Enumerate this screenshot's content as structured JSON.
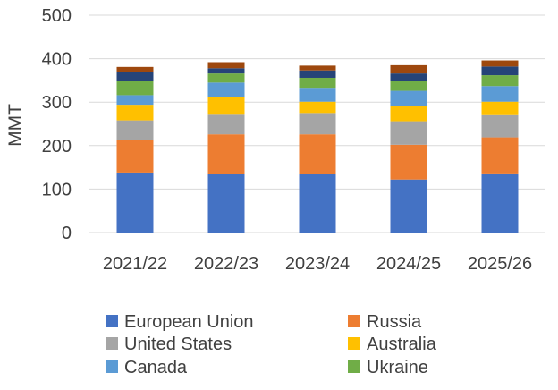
{
  "chart_data": {
    "type": "bar",
    "stacked": true,
    "ylabel": "MMT",
    "xlabel": "",
    "ylim": [
      0,
      500
    ],
    "yticks": [
      0,
      100,
      200,
      300,
      400,
      500
    ],
    "grid": "horizontal",
    "legend_position": "bottom",
    "categories": [
      "2021/22",
      "2022/23",
      "2023/24",
      "2024/25",
      "2025/26"
    ],
    "series": [
      {
        "name": "European Union",
        "color": "#4472C4",
        "values": [
          138,
          134,
          134,
          122,
          136
        ]
      },
      {
        "name": "Russia",
        "color": "#ED7D31",
        "values": [
          75,
          92,
          92,
          80,
          83
        ]
      },
      {
        "name": "United States",
        "color": "#A5A5A5",
        "values": [
          45,
          45,
          49,
          54,
          51
        ]
      },
      {
        "name": "Australia",
        "color": "#FFC000",
        "values": [
          36,
          40,
          26,
          35,
          31
        ]
      },
      {
        "name": "Canada",
        "color": "#5B9BD5",
        "values": [
          22,
          34,
          32,
          35,
          36
        ]
      },
      {
        "name": "Ukraine",
        "color": "#70AD47",
        "values": [
          33,
          21,
          23,
          22,
          25
        ]
      },
      {
        "name": "",
        "color": "#264478",
        "values": [
          20,
          12,
          17,
          18,
          20
        ]
      },
      {
        "name": "",
        "color": "#9E480E",
        "values": [
          12,
          14,
          11,
          19,
          14
        ]
      }
    ]
  }
}
